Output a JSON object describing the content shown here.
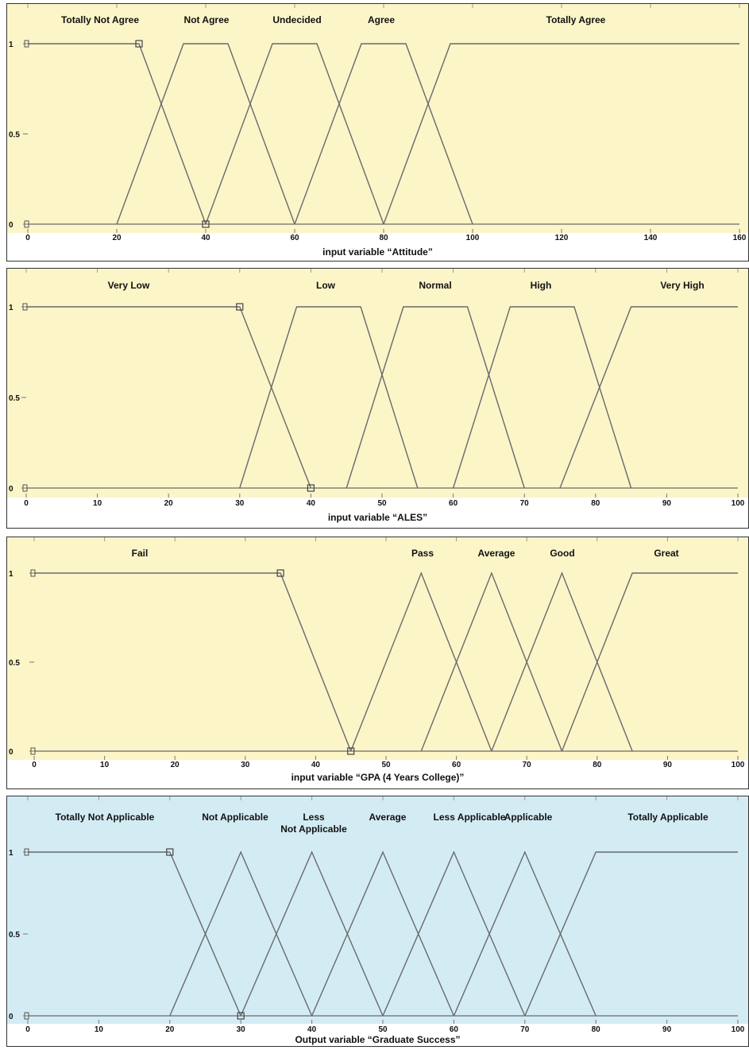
{
  "colors": {
    "input_bg": "#fbf5c8",
    "output_bg": "#d3ecf4",
    "line": "#6a6a6a",
    "text": "#111111"
  },
  "chart_data": [
    {
      "type": "line",
      "xlabel": "input variable “Attitude”",
      "ylabel": "",
      "xlim": [
        0,
        160
      ],
      "ylim": [
        0,
        1
      ],
      "xticks": [
        "0",
        "20",
        "40",
        "60",
        "80",
        "100",
        "120",
        "140",
        "160"
      ],
      "yticks": [
        "0",
        "0.5",
        "1"
      ],
      "series": [
        {
          "name": "Totally Not Agree",
          "x": [
            0,
            25,
            40
          ],
          "y": [
            1,
            1,
            0
          ]
        },
        {
          "name": "Not Agree",
          "x": [
            20,
            35,
            45,
            60
          ],
          "y": [
            0,
            1,
            1,
            0
          ]
        },
        {
          "name": "Undecided",
          "x": [
            40,
            55,
            65,
            80
          ],
          "y": [
            0,
            1,
            1,
            0
          ]
        },
        {
          "name": "Agree",
          "x": [
            60,
            75,
            85,
            100
          ],
          "y": [
            0,
            1,
            1,
            0
          ]
        },
        {
          "name": "Totally Agree",
          "x": [
            80,
            95,
            160
          ],
          "y": [
            0,
            1,
            1
          ]
        }
      ]
    },
    {
      "type": "line",
      "xlabel": "input variable “ALES”",
      "ylabel": "",
      "xlim": [
        0,
        100
      ],
      "ylim": [
        0,
        1
      ],
      "xticks": [
        "0",
        "10",
        "20",
        "30",
        "40",
        "50",
        "60",
        "70",
        "80",
        "90",
        "100"
      ],
      "yticks": [
        "0",
        "0.5",
        "1"
      ],
      "series": [
        {
          "name": "Very Low",
          "x": [
            0,
            30,
            40
          ],
          "y": [
            1,
            1,
            0
          ]
        },
        {
          "name": "Low",
          "x": [
            30,
            38,
            47,
            55
          ],
          "y": [
            0,
            1,
            1,
            0
          ]
        },
        {
          "name": "Normal",
          "x": [
            45,
            53,
            62,
            70
          ],
          "y": [
            0,
            1,
            1,
            0
          ]
        },
        {
          "name": "High",
          "x": [
            60,
            68,
            77,
            85
          ],
          "y": [
            0,
            1,
            1,
            0
          ]
        },
        {
          "name": "Very High",
          "x": [
            75,
            85,
            100
          ],
          "y": [
            0,
            1,
            1
          ]
        }
      ]
    },
    {
      "type": "line",
      "xlabel": "input variable “GPA (4 Years College)”",
      "ylabel": "",
      "xlim": [
        0,
        100
      ],
      "ylim": [
        0,
        1
      ],
      "xticks": [
        "0",
        "10",
        "20",
        "30",
        "40",
        "50",
        "60",
        "70",
        "80",
        "90",
        "100"
      ],
      "yticks": [
        "0",
        "0.5",
        "1"
      ],
      "series": [
        {
          "name": "Fail",
          "x": [
            0,
            35,
            45
          ],
          "y": [
            1,
            1,
            0
          ]
        },
        {
          "name": "Pass",
          "x": [
            45,
            55,
            65
          ],
          "y": [
            0,
            1,
            0
          ]
        },
        {
          "name": "Average",
          "x": [
            55,
            65,
            75
          ],
          "y": [
            0,
            1,
            0
          ]
        },
        {
          "name": "Good",
          "x": [
            65,
            75,
            85
          ],
          "y": [
            0,
            1,
            0
          ]
        },
        {
          "name": "Great",
          "x": [
            75,
            85,
            100
          ],
          "y": [
            0,
            1,
            1
          ]
        }
      ]
    },
    {
      "type": "line",
      "xlabel": "Output variable “Graduate Success”",
      "ylabel": "",
      "xlim": [
        0,
        100
      ],
      "ylim": [
        0,
        1
      ],
      "xticks": [
        "0",
        "10",
        "20",
        "30",
        "40",
        "50",
        "60",
        "70",
        "80",
        "90",
        "100"
      ],
      "yticks": [
        "0",
        "0.5",
        "1"
      ],
      "series": [
        {
          "name": "Totally Not Applicable",
          "x": [
            0,
            20,
            30
          ],
          "y": [
            1,
            1,
            0
          ]
        },
        {
          "name": "Not Applicable",
          "x": [
            20,
            30,
            40
          ],
          "y": [
            0,
            1,
            0
          ]
        },
        {
          "name": "Less Not Applicable",
          "x": [
            30,
            40,
            50
          ],
          "y": [
            0,
            1,
            0
          ]
        },
        {
          "name": "Average",
          "x": [
            40,
            50,
            60
          ],
          "y": [
            0,
            1,
            0
          ]
        },
        {
          "name": "Less Applicable",
          "x": [
            50,
            60,
            70
          ],
          "y": [
            0,
            1,
            0
          ]
        },
        {
          "name": "Applicable",
          "x": [
            60,
            70,
            80
          ],
          "y": [
            0,
            1,
            0
          ]
        },
        {
          "name": "Totally Applicable",
          "x": [
            70,
            80,
            100
          ],
          "y": [
            0,
            1,
            1
          ]
        }
      ]
    }
  ]
}
